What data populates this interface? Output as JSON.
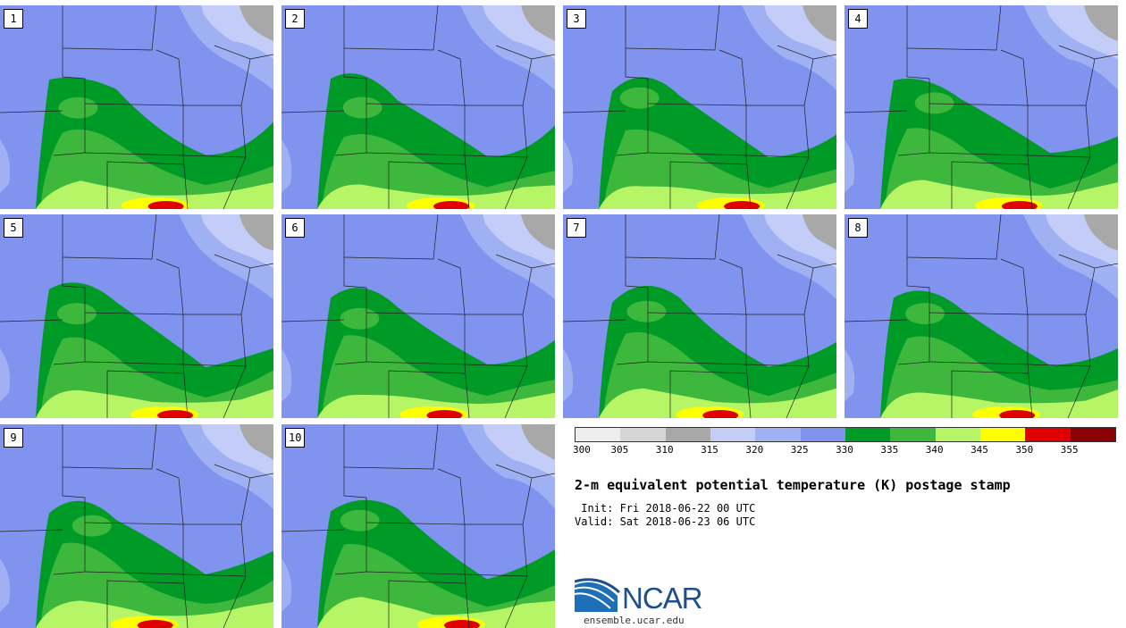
{
  "panels": [
    {
      "label": "1"
    },
    {
      "label": "2"
    },
    {
      "label": "3"
    },
    {
      "label": "4"
    },
    {
      "label": "5"
    },
    {
      "label": "6"
    },
    {
      "label": "7"
    },
    {
      "label": "8"
    },
    {
      "label": "9"
    },
    {
      "label": "10"
    }
  ],
  "colorbar": {
    "colors": [
      "#eeeeee",
      "#d6d6d6",
      "#a8a8a8",
      "#c3cdf7",
      "#9fb0f3",
      "#7f93ef",
      "#009a26",
      "#3db83d",
      "#b6f566",
      "#ffff00",
      "#e00000",
      "#8b0000"
    ],
    "ticks": [
      "300",
      "305",
      "310",
      "315",
      "320",
      "325",
      "330",
      "335",
      "340",
      "345",
      "350",
      "355"
    ]
  },
  "title": "2-m equivalent potential temperature (K) postage stamp",
  "init_line": " Init: Fri 2018-06-22 00 UTC",
  "valid_line": "Valid: Sat 2018-06-23 06 UTC",
  "logo": {
    "name": "NCAR",
    "url": "ensemble.ucar.edu"
  },
  "map_colors": {
    "blue": "#7f93ef",
    "light_blue": "#9fb0f3",
    "pale_blue": "#c3cdf7",
    "gray": "#a8a8a8",
    "dark_green": "#009a26",
    "mid_green": "#3db83d",
    "light_green": "#b6f566",
    "yellow": "#ffff00",
    "red": "#e00000",
    "border": "#222222"
  }
}
